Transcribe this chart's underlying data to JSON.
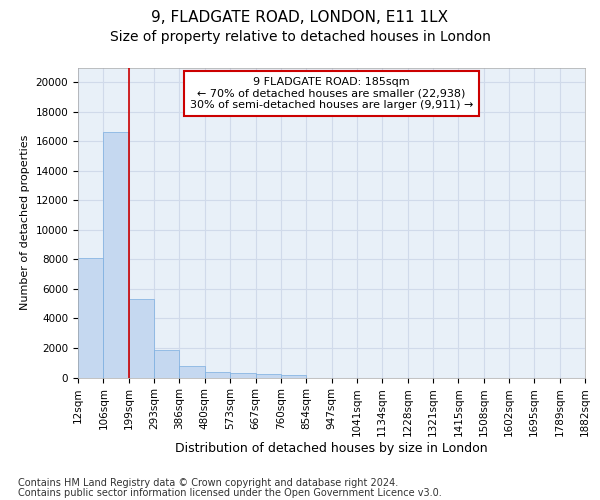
{
  "title1": "9, FLADGATE ROAD, LONDON, E11 1LX",
  "title2": "Size of property relative to detached houses in London",
  "xlabel": "Distribution of detached houses by size in London",
  "ylabel": "Number of detached properties",
  "bar_left_edges": [
    12,
    106,
    199,
    293,
    386,
    480,
    573,
    667,
    760,
    854,
    947,
    1041,
    1134,
    1228,
    1321,
    1415,
    1508,
    1602,
    1695,
    1789
  ],
  "bar_widths": [
    94,
    93,
    94,
    93,
    94,
    93,
    94,
    93,
    94,
    93,
    94,
    93,
    94,
    93,
    94,
    93,
    94,
    93,
    94,
    93
  ],
  "bar_heights": [
    8100,
    16600,
    5300,
    1850,
    750,
    380,
    290,
    230,
    170,
    0,
    0,
    0,
    0,
    0,
    0,
    0,
    0,
    0,
    0,
    0
  ],
  "bar_color": "#c5d8f0",
  "bar_edgecolor": "#7aade0",
  "tick_labels": [
    "12sqm",
    "106sqm",
    "199sqm",
    "293sqm",
    "386sqm",
    "480sqm",
    "573sqm",
    "667sqm",
    "760sqm",
    "854sqm",
    "947sqm",
    "1041sqm",
    "1134sqm",
    "1228sqm",
    "1321sqm",
    "1415sqm",
    "1508sqm",
    "1602sqm",
    "1695sqm",
    "1789sqm",
    "1882sqm"
  ],
  "vline_x": 199,
  "vline_color": "#cc0000",
  "annotation_text": "9 FLADGATE ROAD: 185sqm\n← 70% of detached houses are smaller (22,938)\n30% of semi-detached houses are larger (9,911) →",
  "annotation_box_color": "#ffffff",
  "annotation_box_edgecolor": "#cc0000",
  "ylim": [
    0,
    21000
  ],
  "yticks": [
    0,
    2000,
    4000,
    6000,
    8000,
    10000,
    12000,
    14000,
    16000,
    18000,
    20000
  ],
  "grid_color": "#d0daea",
  "background_color": "#e8f0f8",
  "footer_line1": "Contains HM Land Registry data © Crown copyright and database right 2024.",
  "footer_line2": "Contains public sector information licensed under the Open Government Licence v3.0.",
  "title1_fontsize": 11,
  "title2_fontsize": 10,
  "xlabel_fontsize": 9,
  "ylabel_fontsize": 8,
  "tick_fontsize": 7.5,
  "annotation_fontsize": 8,
  "footer_fontsize": 7
}
